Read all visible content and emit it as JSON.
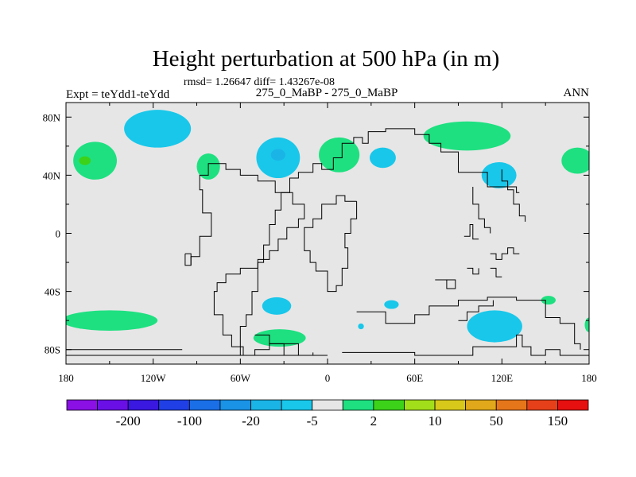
{
  "chart_data": {
    "type": "contour-map",
    "title": "Height perturbation at 500 hPa (in m)",
    "stats": "rmsd= 1.26647 diff= 1.43267e-08",
    "left_label": "Expt = teYdd1-teYdd",
    "center_label": "275_0_MaBP - 275_0_MaBP",
    "right_label": "ANN",
    "x_ticks": [
      {
        "value": -180,
        "label": "180"
      },
      {
        "value": -120,
        "label": "120W"
      },
      {
        "value": -60,
        "label": "60W"
      },
      {
        "value": 0,
        "label": "0"
      },
      {
        "value": 60,
        "label": "60E"
      },
      {
        "value": 120,
        "label": "120E"
      },
      {
        "value": 180,
        "label": "180"
      }
    ],
    "y_ticks": [
      {
        "value": 80,
        "label": "80N"
      },
      {
        "value": 40,
        "label": "40N"
      },
      {
        "value": 0,
        "label": "0"
      },
      {
        "value": -40,
        "label": "40S"
      },
      {
        "value": -80,
        "label": "80S"
      }
    ],
    "xlim": [
      -180,
      180
    ],
    "ylim": [
      -90,
      90
    ],
    "colorbar": {
      "levels": [
        -200,
        -150,
        -100,
        -50,
        -20,
        -10,
        -5,
        -2,
        2,
        5,
        10,
        20,
        50,
        100,
        150,
        200
      ],
      "colors": [
        "#8a10e6",
        "#6a10e6",
        "#3a18e0",
        "#2040e6",
        "#1a6ee6",
        "#1a92e6",
        "#1ab4e6",
        "#19c7ea",
        "#e6e6e6",
        "#1ee080",
        "#3cd21a",
        "#a2de1a",
        "#d8c81a",
        "#e0a81a",
        "#e6761a",
        "#e6401a",
        "#e61010"
      ],
      "labels": [
        {
          "after_box": 1,
          "text": "-200"
        },
        {
          "after_box": 3,
          "text": "-100"
        },
        {
          "after_box": 5,
          "text": "-20"
        },
        {
          "after_box": 7,
          "text": "-5"
        },
        {
          "after_box": 9,
          "text": "2"
        },
        {
          "after_box": 11,
          "text": "10"
        },
        {
          "after_box": 13,
          "text": "50"
        },
        {
          "after_box": 15,
          "text": "150"
        }
      ]
    },
    "regions": [
      {
        "level": 2,
        "color": "#1ee080",
        "lon": -160,
        "lat": 50,
        "dlon": 15,
        "dlat": 13
      },
      {
        "level": 5,
        "color": "#3cd21a",
        "lon": -167,
        "lat": 50,
        "dlon": 4,
        "dlat": 3
      },
      {
        "level": -2,
        "color": "#19c7ea",
        "lon": -117,
        "lat": 72,
        "dlon": 23,
        "dlat": 13
      },
      {
        "level": 2,
        "color": "#1ee080",
        "lon": -82,
        "lat": 46,
        "dlon": 8,
        "dlat": 9
      },
      {
        "level": -2,
        "color": "#19c7ea",
        "lon": -34,
        "lat": 52,
        "dlon": 15,
        "dlat": 14
      },
      {
        "level": -5,
        "color": "#1ab4e6",
        "lon": -34,
        "lat": 54,
        "dlon": 5,
        "dlat": 4
      },
      {
        "level": 2,
        "color": "#1ee080",
        "lon": 8,
        "lat": 54,
        "dlon": 14,
        "dlat": 12
      },
      {
        "level": -2,
        "color": "#19c7ea",
        "lon": 38,
        "lat": 52,
        "dlon": 9,
        "dlat": 7
      },
      {
        "level": 2,
        "color": "#1ee080",
        "lon": 96,
        "lat": 67,
        "dlon": 30,
        "dlat": 10
      },
      {
        "level": -2,
        "color": "#19c7ea",
        "lon": 118,
        "lat": 40,
        "dlon": 12,
        "dlat": 9
      },
      {
        "level": 2,
        "color": "#1ee080",
        "lon": 172,
        "lat": 50,
        "dlon": 11,
        "dlat": 9
      },
      {
        "level": 2,
        "color": "#1ee080",
        "lon": -150,
        "lat": -60,
        "dlon": 33,
        "dlat": 7
      },
      {
        "level": -2,
        "color": "#19c7ea",
        "lon": -35,
        "lat": -50,
        "dlon": 10,
        "dlat": 6
      },
      {
        "level": 2,
        "color": "#1ee080",
        "lon": -33,
        "lat": -72,
        "dlon": 18,
        "dlat": 6
      },
      {
        "level": -2,
        "color": "#19c7ea",
        "lon": 44,
        "lat": -49,
        "dlon": 5,
        "dlat": 3
      },
      {
        "level": -2,
        "color": "#19c7ea",
        "lon": 23,
        "lat": -64,
        "dlon": 2,
        "dlat": 2
      },
      {
        "level": -2,
        "color": "#19c7ea",
        "lon": 115,
        "lat": -64,
        "dlon": 19,
        "dlat": 11
      },
      {
        "level": 2,
        "color": "#1ee080",
        "lon": 152,
        "lat": -46,
        "dlon": 5,
        "dlat": 3
      },
      {
        "level": 2,
        "color": "#1ee080",
        "lon": 180,
        "lat": -63,
        "dlon": 3,
        "dlat": 5
      }
    ],
    "coastlines": [
      [
        [
          -30,
          -84
        ],
        [
          -30,
          -76
        ],
        [
          -40,
          -76
        ],
        [
          -40,
          -80
        ],
        [
          -50,
          -80
        ],
        [
          -50,
          -84
        ]
      ],
      [
        [
          -60,
          -84
        ],
        [
          -60,
          -64
        ],
        [
          -56,
          -64
        ],
        [
          -56,
          -56
        ],
        [
          -52,
          -56
        ],
        [
          -52,
          -40
        ],
        [
          -48,
          -40
        ],
        [
          -48,
          -20
        ],
        [
          -44,
          -20
        ],
        [
          -44,
          -8
        ],
        [
          -40,
          -8
        ],
        [
          -40,
          6
        ],
        [
          -36,
          6
        ],
        [
          -36,
          16
        ],
        [
          -32,
          16
        ],
        [
          -32,
          28
        ],
        [
          -26,
          28
        ],
        [
          -26,
          38
        ],
        [
          -20,
          38
        ],
        [
          -20,
          42
        ],
        [
          -10,
          42
        ],
        [
          -10,
          48
        ],
        [
          -4,
          48
        ],
        [
          -4,
          44
        ],
        [
          4,
          44
        ],
        [
          4,
          52
        ],
        [
          10,
          52
        ],
        [
          10,
          62
        ],
        [
          18,
          62
        ],
        [
          18,
          66
        ],
        [
          24,
          66
        ],
        [
          24,
          62
        ],
        [
          28,
          62
        ],
        [
          28,
          70
        ],
        [
          40,
          70
        ],
        [
          40,
          72
        ],
        [
          60,
          72
        ],
        [
          60,
          68
        ],
        [
          70,
          68
        ],
        [
          70,
          62
        ],
        [
          78,
          62
        ],
        [
          78,
          56
        ],
        [
          90,
          56
        ],
        [
          90,
          42
        ],
        [
          110,
          42
        ],
        [
          110,
          32
        ],
        [
          130,
          32
        ],
        [
          130,
          28
        ],
        [
          132,
          28
        ]
      ],
      [
        [
          100,
          32
        ],
        [
          100,
          20
        ],
        [
          104,
          20
        ],
        [
          104,
          10
        ],
        [
          108,
          10
        ],
        [
          108,
          4
        ],
        [
          112,
          4
        ],
        [
          112,
          0
        ]
      ],
      [
        [
          20,
          22
        ],
        [
          20,
          10
        ],
        [
          16,
          10
        ],
        [
          16,
          0
        ],
        [
          12,
          0
        ],
        [
          12,
          -10
        ],
        [
          14,
          -10
        ],
        [
          14,
          -24
        ],
        [
          10,
          -24
        ],
        [
          10,
          -36
        ],
        [
          6,
          -36
        ],
        [
          6,
          -40
        ],
        [
          0,
          -40
        ],
        [
          0,
          -26
        ],
        [
          -8,
          -26
        ],
        [
          -8,
          -20
        ],
        [
          -12,
          -20
        ],
        [
          -12,
          -12
        ],
        [
          -16,
          -12
        ],
        [
          -16,
          4
        ],
        [
          -10,
          4
        ],
        [
          -10,
          10
        ],
        [
          -4,
          10
        ],
        [
          -4,
          20
        ],
        [
          6,
          20
        ],
        [
          6,
          26
        ],
        [
          12,
          26
        ],
        [
          12,
          22
        ],
        [
          20,
          22
        ]
      ],
      [
        [
          -94,
          -22
        ],
        [
          -94,
          -16
        ],
        [
          -88,
          -16
        ],
        [
          -88,
          -2
        ],
        [
          -80,
          -2
        ],
        [
          -80,
          14
        ],
        [
          -86,
          14
        ],
        [
          -86,
          30
        ],
        [
          -88,
          30
        ],
        [
          -88,
          40
        ],
        [
          -82,
          40
        ],
        [
          -82,
          48
        ],
        [
          -70,
          48
        ],
        [
          -70,
          44
        ],
        [
          -60,
          44
        ],
        [
          -60,
          40
        ],
        [
          -48,
          40
        ],
        [
          -48,
          36
        ],
        [
          -36,
          36
        ],
        [
          -36,
          28
        ],
        [
          -24,
          28
        ],
        [
          -24,
          20
        ],
        [
          -16,
          20
        ],
        [
          -16,
          10
        ],
        [
          -20,
          10
        ],
        [
          -20,
          4
        ],
        [
          -28,
          4
        ],
        [
          -28,
          -4
        ],
        [
          -34,
          -4
        ],
        [
          -34,
          -12
        ],
        [
          -40,
          -12
        ],
        [
          -40,
          -18
        ],
        [
          -48,
          -18
        ],
        [
          -48,
          -24
        ],
        [
          -60,
          -24
        ],
        [
          -60,
          -28
        ],
        [
          -70,
          -28
        ],
        [
          -70,
          -34
        ],
        [
          -76,
          -34
        ],
        [
          -76,
          -40
        ],
        [
          -78,
          -40
        ],
        [
          -78,
          -56
        ],
        [
          -72,
          -56
        ],
        [
          -72,
          -70
        ],
        [
          -66,
          -70
        ],
        [
          -66,
          -78
        ],
        [
          -58,
          -78
        ],
        [
          -58,
          -84
        ]
      ],
      [
        [
          -50,
          -70
        ],
        [
          -40,
          -70
        ],
        [
          -40,
          -76
        ],
        [
          -30,
          -76
        ]
      ],
      [
        [
          -180,
          -84
        ],
        [
          -140,
          -84
        ],
        [
          -100,
          -84
        ],
        [
          -60,
          -84
        ],
        [
          -20,
          -84
        ],
        [
          0,
          -84
        ]
      ],
      [
        [
          -30,
          -76
        ],
        [
          -20,
          -76
        ],
        [
          -20,
          -84
        ],
        [
          -10,
          -84
        ],
        [
          -10,
          -82
        ]
      ],
      [
        [
          10,
          -82
        ],
        [
          60,
          -82
        ],
        [
          60,
          -84
        ],
        [
          100,
          -84
        ],
        [
          100,
          -78
        ],
        [
          130,
          -78
        ],
        [
          130,
          -70
        ],
        [
          134,
          -70
        ],
        [
          134,
          -78
        ],
        [
          140,
          -78
        ],
        [
          140,
          -84
        ],
        [
          150,
          -84
        ],
        [
          150,
          -80
        ],
        [
          160,
          -80
        ],
        [
          160,
          -84
        ],
        [
          180,
          -84
        ]
      ],
      [
        [
          20,
          -54
        ],
        [
          40,
          -54
        ],
        [
          40,
          -62
        ],
        [
          60,
          -62
        ],
        [
          60,
          -56
        ],
        [
          70,
          -56
        ],
        [
          70,
          -50
        ],
        [
          90,
          -50
        ],
        [
          90,
          -46
        ],
        [
          110,
          -46
        ],
        [
          110,
          -44
        ],
        [
          130,
          -44
        ],
        [
          130,
          -46
        ],
        [
          150,
          -46
        ],
        [
          150,
          -58
        ],
        [
          160,
          -58
        ],
        [
          160,
          -62
        ],
        [
          170,
          -62
        ],
        [
          170,
          -76
        ],
        [
          174,
          -76
        ],
        [
          174,
          -80
        ]
      ],
      [
        [
          -180,
          -80
        ],
        [
          -100,
          -80
        ]
      ],
      [
        [
          90,
          -60
        ],
        [
          96,
          -60
        ],
        [
          96,
          -54
        ],
        [
          104,
          -54
        ],
        [
          104,
          -50
        ],
        [
          114,
          -50
        ],
        [
          114,
          -46
        ]
      ],
      [
        [
          74,
          -32
        ],
        [
          82,
          -32
        ],
        [
          82,
          -38
        ],
        [
          88,
          -38
        ],
        [
          88,
          -32
        ],
        [
          82,
          -32
        ]
      ],
      [
        [
          94,
          -2
        ],
        [
          98,
          -2
        ],
        [
          98,
          6
        ],
        [
          100,
          6
        ],
        [
          100,
          -4
        ],
        [
          104,
          -4
        ]
      ],
      [
        [
          112,
          -14
        ],
        [
          116,
          -14
        ],
        [
          116,
          -18
        ],
        [
          120,
          -18
        ],
        [
          120,
          -14
        ],
        [
          124,
          -14
        ],
        [
          124,
          -10
        ],
        [
          128,
          -10
        ],
        [
          128,
          -14
        ],
        [
          132,
          -14
        ]
      ],
      [
        [
          96,
          -24
        ],
        [
          100,
          -24
        ],
        [
          100,
          -28
        ],
        [
          104,
          -28
        ],
        [
          104,
          -24
        ]
      ],
      [
        [
          112,
          -24
        ],
        [
          116,
          -24
        ],
        [
          116,
          -30
        ],
        [
          120,
          -30
        ]
      ],
      [
        [
          120,
          44
        ],
        [
          120,
          36
        ],
        [
          124,
          36
        ],
        [
          124,
          30
        ],
        [
          128,
          30
        ],
        [
          128,
          20
        ],
        [
          132,
          20
        ],
        [
          132,
          12
        ],
        [
          136,
          12
        ],
        [
          136,
          8
        ]
      ],
      [
        [
          -98,
          -14
        ],
        [
          -94,
          -14
        ],
        [
          -94,
          -22
        ],
        [
          -98,
          -22
        ],
        [
          -98,
          -14
        ]
      ]
    ]
  }
}
